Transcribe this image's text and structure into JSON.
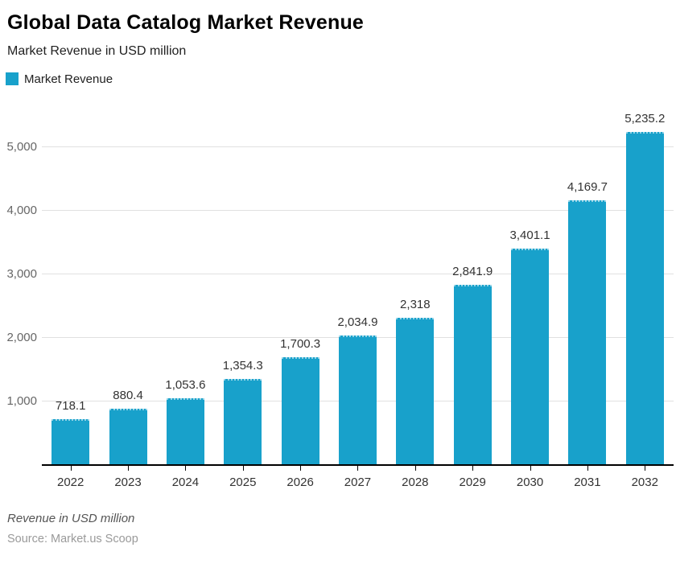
{
  "header": {
    "title": "Global Data Catalog Market Revenue",
    "subtitle": "Market Revenue in USD million"
  },
  "legend": {
    "items": [
      {
        "label": "Market Revenue",
        "color": "#18A1CB"
      }
    ]
  },
  "chart_data": {
    "type": "bar",
    "title": "Global Data Catalog Market Revenue",
    "subtitle": "Market Revenue in USD million",
    "xlabel": "",
    "ylabel": "Market Revenue in USD million",
    "categories": [
      "2022",
      "2023",
      "2024",
      "2025",
      "2026",
      "2027",
      "2028",
      "2029",
      "2030",
      "2031",
      "2032"
    ],
    "series": [
      {
        "name": "Market Revenue",
        "values": [
          718.1,
          880.4,
          1053.6,
          1354.3,
          1700.3,
          2034.9,
          2318,
          2841.9,
          3401.1,
          4169.7,
          5235.2
        ],
        "value_labels": [
          "718.1",
          "880.4",
          "1,053.6",
          "1,354.3",
          "1,700.3",
          "2,034.9",
          "2,318",
          "2,841.9",
          "3,401.1",
          "4,169.7",
          "5,235.2"
        ],
        "color": "#18A1CB"
      }
    ],
    "ylim": [
      0,
      5595
    ],
    "yticks": [
      {
        "value": 1000,
        "label": "1,000"
      },
      {
        "value": 2000,
        "label": "2,000"
      },
      {
        "value": 3000,
        "label": "3,000"
      },
      {
        "value": 4000,
        "label": "4,000"
      },
      {
        "value": 5000,
        "label": "5,000"
      }
    ],
    "grid": true,
    "legend_position": "top-left"
  },
  "footer": {
    "note": "Revenue in USD million",
    "source": "Source: Market.us Scoop"
  },
  "colors": {
    "bar": "#18A1CB",
    "gridline": "#E0E0E0",
    "axis": "#000000",
    "y_axis_label": "#666666",
    "x_axis_label": "#333333",
    "value_label": "#333333"
  }
}
